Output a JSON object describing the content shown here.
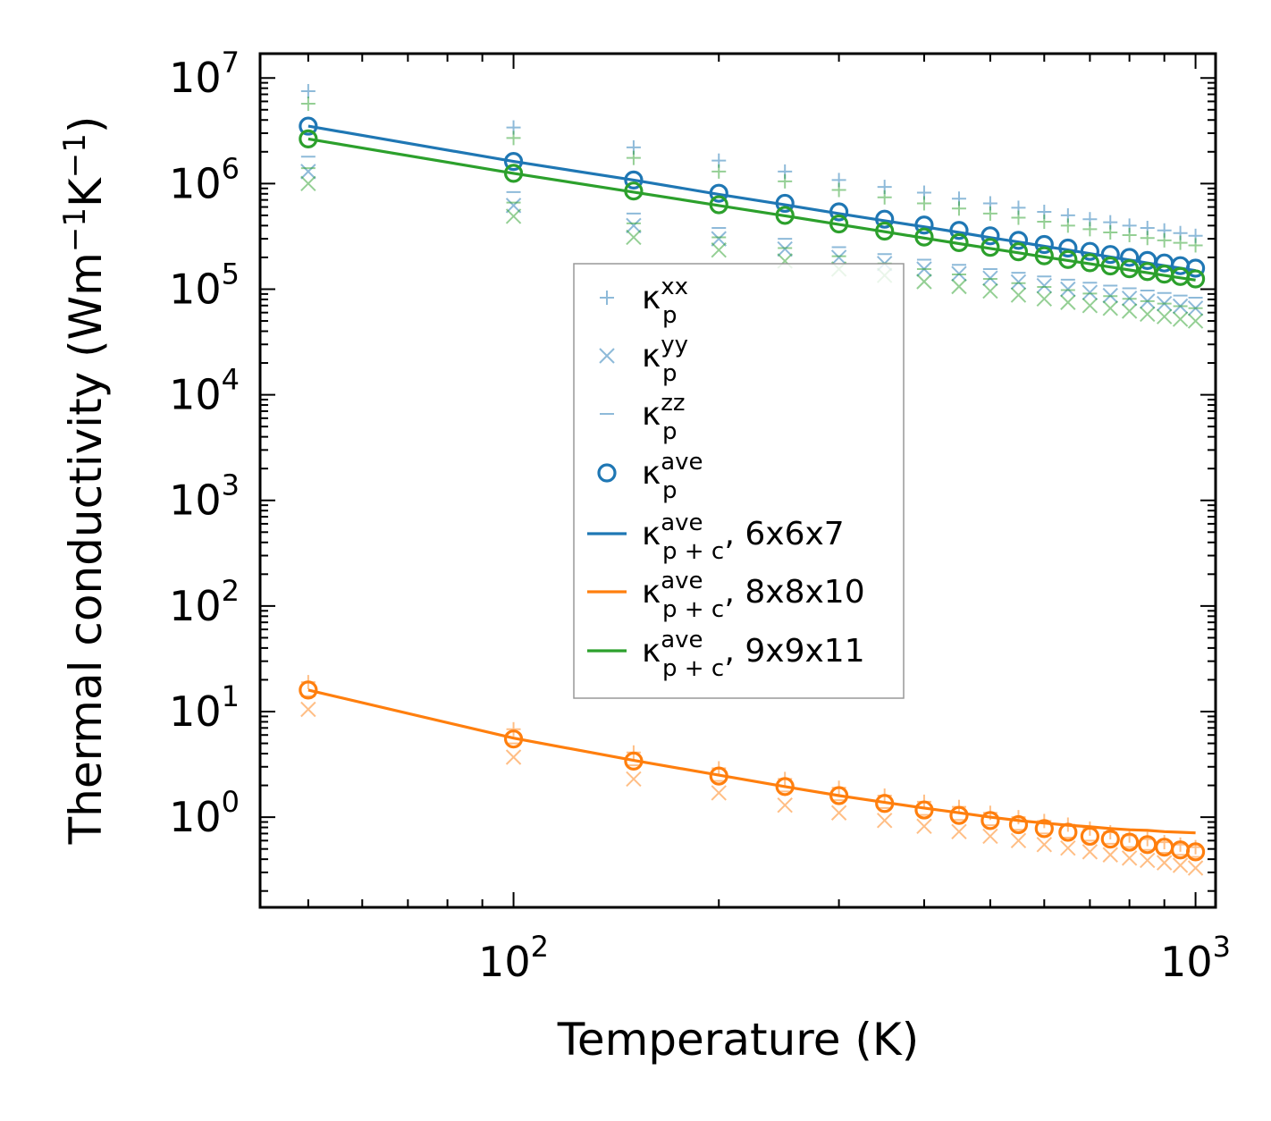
{
  "chart_data": {
    "type": "scatter",
    "xscale": "log",
    "yscale": "log",
    "xlabel": "Temperature (K)",
    "ylabel": {
      "prefix": "Thermal conductivity (Wm",
      "exp1": "−1",
      "mid": "K",
      "exp2": "−1",
      "suffix": ")"
    },
    "xlim": [
      42.5,
      1070
    ],
    "ylim": [
      0.14,
      17000000
    ],
    "xticks": [
      {
        "value": 100,
        "base": "10",
        "exp": "2"
      },
      {
        "value": 1000,
        "base": "10",
        "exp": "3"
      }
    ],
    "yticks": [
      {
        "value": 1,
        "base": "10",
        "exp": "0"
      },
      {
        "value": 10,
        "base": "10",
        "exp": "1"
      },
      {
        "value": 100,
        "base": "10",
        "exp": "2"
      },
      {
        "value": 1000,
        "base": "10",
        "exp": "3"
      },
      {
        "value": 10000,
        "base": "10",
        "exp": "4"
      },
      {
        "value": 100000,
        "base": "10",
        "exp": "5"
      },
      {
        "value": 1000000,
        "base": "10",
        "exp": "6"
      },
      {
        "value": 10000000,
        "base": "10",
        "exp": "7"
      }
    ],
    "temperatures": [
      50,
      100,
      150,
      200,
      250,
      300,
      350,
      400,
      450,
      500,
      550,
      600,
      650,
      700,
      750,
      800,
      850,
      900,
      950,
      1000
    ],
    "colors": {
      "blue": "#1f77b4",
      "orange": "#ff7f0e",
      "green": "#2ca02c"
    },
    "series": [
      {
        "name": "6x6x7",
        "color": "#1f77b4",
        "kxx": [
          7500000,
          3400000,
          2200000,
          1650000,
          1300000,
          1080000,
          930000,
          820000,
          720000,
          650000,
          590000,
          540000,
          500000,
          460000,
          430000,
          400000,
          380000,
          360000,
          340000,
          320000
        ],
        "kyy": [
          1300000,
          620000,
          400000,
          300000,
          240000,
          200000,
          175000,
          155000,
          140000,
          127000,
          117000,
          108000,
          100000,
          93000,
          87000,
          82000,
          77000,
          73000,
          69000,
          66000
        ],
        "kzz": [
          1800000,
          830000,
          520000,
          380000,
          300000,
          250000,
          215000,
          190000,
          170000,
          155000,
          143000,
          132000,
          123000,
          115000,
          108000,
          102000,
          97000,
          92000,
          87000,
          83000
        ],
        "kave": [
          3500000,
          1620000,
          1080000,
          810000,
          650000,
          540000,
          460000,
          405000,
          360000,
          320000,
          290000,
          265000,
          245000,
          228000,
          213000,
          200000,
          187000,
          177000,
          167000,
          158000
        ],
        "fit": [
          3500000,
          1620000,
          1080000,
          790000,
          630000,
          520000,
          445000,
          390000,
          345000,
          308000,
          280000,
          255000,
          235000,
          217000,
          202000,
          189000,
          177000,
          167000,
          158000,
          150000
        ]
      },
      {
        "name": "8x8x10",
        "color": "#ff7f0e",
        "kxx": [
          19,
          6.8,
          4.1,
          2.9,
          2.3,
          1.9,
          1.6,
          1.4,
          1.25,
          1.1,
          1.0,
          0.92,
          0.85,
          0.78,
          0.72,
          0.67,
          0.62,
          0.58,
          0.55,
          0.52
        ],
        "kyy": [
          10.5,
          3.7,
          2.3,
          1.7,
          1.3,
          1.1,
          0.93,
          0.82,
          0.73,
          0.66,
          0.6,
          0.55,
          0.51,
          0.47,
          0.44,
          0.41,
          0.39,
          0.37,
          0.35,
          0.33
        ],
        "kzz": [
          14,
          5,
          3.1,
          2.2,
          1.75,
          1.45,
          1.22,
          1.05,
          0.94,
          0.84,
          0.76,
          0.7,
          0.64,
          0.6,
          0.56,
          0.52,
          0.49,
          0.46,
          0.44,
          0.42
        ],
        "kave": [
          16,
          5.5,
          3.4,
          2.45,
          1.95,
          1.6,
          1.35,
          1.17,
          1.04,
          0.93,
          0.85,
          0.78,
          0.72,
          0.66,
          0.62,
          0.58,
          0.55,
          0.52,
          0.49,
          0.47
        ],
        "fit": [
          16,
          5.6,
          3.45,
          2.5,
          1.95,
          1.6,
          1.38,
          1.22,
          1.1,
          1.0,
          0.93,
          0.88,
          0.84,
          0.81,
          0.78,
          0.76,
          0.75,
          0.73,
          0.72,
          0.71
        ]
      },
      {
        "name": "9x9x11",
        "color": "#2ca02c",
        "kxx": [
          5700000,
          2700000,
          1750000,
          1300000,
          1050000,
          870000,
          740000,
          650000,
          580000,
          520000,
          475000,
          435000,
          400000,
          370000,
          345000,
          325000,
          305000,
          290000,
          275000,
          260000
        ],
        "kyy": [
          1000000,
          490000,
          310000,
          235000,
          185000,
          155000,
          135000,
          118000,
          106000,
          96000,
          88000,
          81000,
          75000,
          70000,
          66000,
          62000,
          58000,
          55000,
          52000,
          50000
        ],
        "kzz": [
          1400000,
          660000,
          420000,
          310000,
          245000,
          205000,
          175000,
          155000,
          138000,
          125000,
          114000,
          105000,
          98000,
          91000,
          86000,
          81000,
          77000,
          73000,
          69000,
          66000
        ],
        "kave": [
          2650000,
          1250000,
          850000,
          630000,
          500000,
          415000,
          355000,
          312000,
          276000,
          249000,
          226000,
          207000,
          191000,
          178000,
          166000,
          156000,
          147000,
          139000,
          132000,
          125000
        ],
        "fit": [
          2650000,
          1250000,
          830000,
          620000,
          495000,
          410000,
          350000,
          305000,
          270000,
          243000,
          221000,
          202000,
          187000,
          174000,
          162000,
          152000,
          143000,
          135000,
          128000,
          122000
        ]
      }
    ],
    "legend": {
      "position": "center",
      "entries": [
        {
          "marker": "plus",
          "main": "κ",
          "sup": "xx",
          "sub": "p",
          "tail": ""
        },
        {
          "marker": "cross",
          "main": "κ",
          "sup": "yy",
          "sub": "p",
          "tail": ""
        },
        {
          "marker": "dash",
          "main": "κ",
          "sup": "zz",
          "sub": "p",
          "tail": ""
        },
        {
          "marker": "circle",
          "main": "κ",
          "sup": "ave",
          "sub": "p",
          "tail": ""
        },
        {
          "marker": "line-blue",
          "main": "κ",
          "sup": "ave",
          "sub": "p + c",
          "tail": ", 6x6x7"
        },
        {
          "marker": "line-orange",
          "main": "κ",
          "sup": "ave",
          "sub": "p + c",
          "tail": ", 8x8x10"
        },
        {
          "marker": "line-green",
          "main": "κ",
          "sup": "ave",
          "sub": "p + c",
          "tail": ", 9x9x11"
        }
      ]
    }
  }
}
